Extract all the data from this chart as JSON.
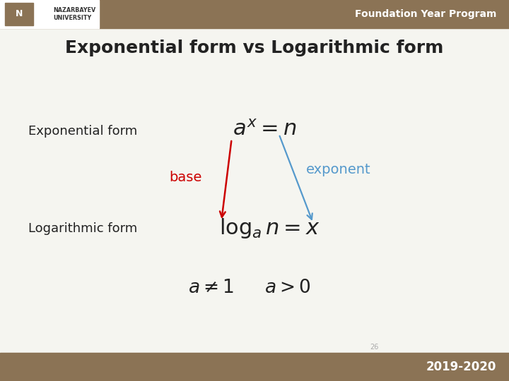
{
  "title": "Exponential form vs Logarithmic form",
  "title_fontsize": 18,
  "title_fontweight": "bold",
  "bg_color": "#f5f5f0",
  "header_color": "#8B7355",
  "header_text": "Foundation Year Program",
  "header_text_color": "#ffffff",
  "footer_text": "2019-2020",
  "footer_page": "26",
  "label_exp_form": "Exponential form",
  "label_log_form": "Logarithmic form",
  "label_base": "base",
  "label_exponent": "exponent",
  "base_color": "#cc0000",
  "exponent_color": "#5599cc",
  "text_color": "#222222",
  "eq_exp": "$a^x = n$",
  "eq_log": "$\\log_a n = x$",
  "eq_cond1": "$a \\neq 1$",
  "eq_cond2": "$a > 0$"
}
